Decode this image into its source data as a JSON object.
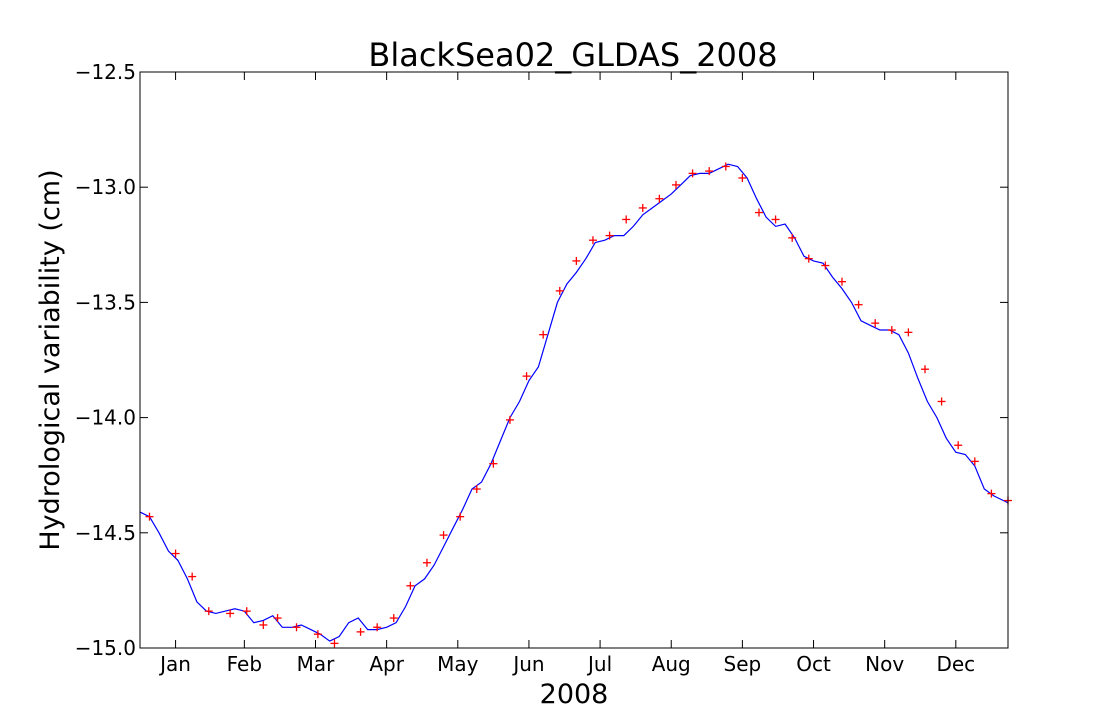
{
  "chart_data": {
    "type": "line",
    "title": "BlackSea02_GLDAS_2008",
    "xlabel": "2008",
    "ylabel": "Hydrological variability (cm)",
    "xlim": [
      0,
      366
    ],
    "ylim": [
      -15.0,
      -12.5
    ],
    "yticks": [
      -15.0,
      -14.5,
      -14.0,
      -13.5,
      -13.0,
      -12.5
    ],
    "ytick_labels": [
      "−15.0",
      "−14.5",
      "−14.0",
      "−13.5",
      "−13.0",
      "−12.5"
    ],
    "xticks": [
      {
        "day": 15,
        "label": "Jan"
      },
      {
        "day": 44,
        "label": "Feb"
      },
      {
        "day": 74,
        "label": "Mar"
      },
      {
        "day": 104,
        "label": "Apr"
      },
      {
        "day": 134,
        "label": "May"
      },
      {
        "day": 164,
        "label": "Jun"
      },
      {
        "day": 194,
        "label": "Jul"
      },
      {
        "day": 224,
        "label": "Aug"
      },
      {
        "day": 254,
        "label": "Sep"
      },
      {
        "day": 284,
        "label": "Oct"
      },
      {
        "day": 314,
        "label": "Nov"
      },
      {
        "day": 344,
        "label": "Dec"
      }
    ],
    "series": [
      {
        "name": "continuous",
        "color": "#0000ff",
        "style": "line",
        "x": [
          0,
          4,
          8,
          12,
          16,
          20,
          24,
          28,
          32,
          36,
          40,
          44,
          48,
          52,
          56,
          60,
          64,
          68,
          72,
          76,
          80,
          84,
          88,
          92,
          96,
          100,
          104,
          108,
          112,
          116,
          120,
          124,
          128,
          132,
          136,
          140,
          144,
          148,
          152,
          156,
          160,
          164,
          168,
          172,
          176,
          180,
          184,
          188,
          192,
          196,
          200,
          204,
          208,
          212,
          216,
          220,
          224,
          228,
          232,
          236,
          240,
          244,
          248,
          252,
          256,
          260,
          264,
          268,
          272,
          276,
          280,
          284,
          288,
          292,
          296,
          300,
          304,
          308,
          312,
          316,
          320,
          324,
          328,
          332,
          336,
          340,
          344,
          348,
          352,
          356,
          360,
          364,
          366
        ],
        "y": [
          -14.41,
          -14.43,
          -14.5,
          -14.58,
          -14.62,
          -14.7,
          -14.8,
          -14.84,
          -14.85,
          -14.84,
          -14.83,
          -14.84,
          -14.89,
          -14.88,
          -14.86,
          -14.91,
          -14.91,
          -14.9,
          -14.92,
          -14.94,
          -14.97,
          -14.95,
          -14.89,
          -14.87,
          -14.92,
          -14.92,
          -14.91,
          -14.89,
          -14.82,
          -14.73,
          -14.7,
          -14.64,
          -14.56,
          -14.48,
          -14.4,
          -14.31,
          -14.28,
          -14.2,
          -14.1,
          -14.0,
          -13.93,
          -13.84,
          -13.78,
          -13.64,
          -13.5,
          -13.42,
          -13.37,
          -13.31,
          -13.24,
          -13.23,
          -13.21,
          -13.21,
          -13.17,
          -13.12,
          -13.09,
          -13.06,
          -13.03,
          -12.99,
          -12.95,
          -12.94,
          -12.94,
          -12.92,
          -12.9,
          -12.91,
          -12.96,
          -13.05,
          -13.13,
          -13.17,
          -13.16,
          -13.22,
          -13.3,
          -13.32,
          -13.33,
          -13.39,
          -13.44,
          -13.5,
          -13.58,
          -13.6,
          -13.62,
          -13.62,
          -13.64,
          -13.72,
          -13.83,
          -13.93,
          -14.0,
          -14.09,
          -14.15,
          -14.16,
          -14.21,
          -14.31,
          -14.34,
          -14.36,
          -14.37
        ]
      },
      {
        "name": "samples",
        "color": "#ff0000",
        "style": "marker",
        "marker": "+",
        "x": [
          4,
          15,
          22,
          29,
          38,
          45,
          52,
          58,
          66,
          75,
          82,
          93,
          100,
          107,
          114,
          121,
          128,
          135,
          142,
          149,
          156,
          163,
          170,
          177,
          184,
          191,
          198,
          205,
          212,
          219,
          226,
          233,
          240,
          247,
          254,
          261,
          268,
          275,
          282,
          289,
          296,
          303,
          310,
          317,
          324,
          331,
          338,
          345,
          352,
          359,
          366
        ],
        "y": [
          -14.43,
          -14.59,
          -14.69,
          -14.84,
          -14.85,
          -14.84,
          -14.9,
          -14.87,
          -14.91,
          -14.94,
          -14.98,
          -14.93,
          -14.91,
          -14.87,
          -14.73,
          -14.63,
          -14.51,
          -14.43,
          -14.31,
          -14.2,
          -14.01,
          -13.82,
          -13.64,
          -13.45,
          -13.32,
          -13.23,
          -13.21,
          -13.14,
          -13.09,
          -13.05,
          -12.99,
          -12.94,
          -12.93,
          -12.91,
          -12.96,
          -13.11,
          -13.14,
          -13.22,
          -13.31,
          -13.34,
          -13.41,
          -13.51,
          -13.59,
          -13.62,
          -13.63,
          -13.79,
          -13.93,
          -14.12,
          -14.19,
          -14.33,
          -14.36
        ]
      }
    ]
  }
}
